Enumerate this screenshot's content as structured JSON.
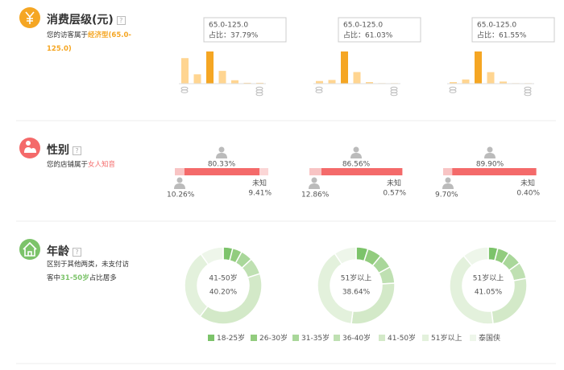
{
  "spending": {
    "title": "消费层级(元)",
    "desc_prefix": "您的访客属于",
    "desc_highlight": "经济型(65.0-125.0)",
    "charts": [
      {
        "type": "bar",
        "tooltip_title": "65.0-125.0",
        "tooltip_label": "占比：37.79%",
        "values": [
          30,
          11,
          37.79,
          15,
          4,
          1,
          1
        ],
        "colors": [
          "#ffd591",
          "#ffd591",
          "#f5a623",
          "#ffd591",
          "#ffd591",
          "#ffd591",
          "#ffd591"
        ]
      },
      {
        "type": "bar",
        "tooltip_title": "65.0-125.0",
        "tooltip_label": "占比：61.03%",
        "values": [
          5,
          7,
          61.03,
          22,
          3,
          1,
          1
        ],
        "colors": [
          "#ffd591",
          "#ffd591",
          "#f5a623",
          "#ffd591",
          "#ffd591",
          "#ffd591",
          "#ffd591"
        ]
      },
      {
        "type": "bar",
        "tooltip_title": "65.0-125.0",
        "tooltip_label": "占比：61.55%",
        "values": [
          3,
          8,
          61.55,
          22,
          4,
          1,
          1
        ],
        "colors": [
          "#ffd591",
          "#ffd591",
          "#f5a623",
          "#ffd591",
          "#ffd591",
          "#ffd591",
          "#ffd591"
        ]
      }
    ]
  },
  "gender": {
    "title": "性别",
    "desc_prefix": "您的店铺属于",
    "desc_highlight": "女人知音",
    "unknown_name": "未知",
    "charts": [
      {
        "type": "stacked-bar",
        "values": [
          10.26,
          80.33,
          9.41
        ],
        "value_labels": [
          "10.26%",
          "80.33%",
          "9.41%"
        ],
        "colors": [
          "#f8c4c4",
          "#f46a6a",
          "#fbd6d6"
        ]
      },
      {
        "type": "stacked-bar",
        "values": [
          12.86,
          86.56,
          0.57
        ],
        "value_labels": [
          "12.86%",
          "86.56%",
          "0.57%"
        ],
        "colors": [
          "#f8c4c4",
          "#f46a6a",
          "#fbd6d6"
        ]
      },
      {
        "type": "stacked-bar",
        "values": [
          9.7,
          89.9,
          0.4
        ],
        "value_labels": [
          "9.70%",
          "89.90%",
          "0.40%"
        ],
        "colors": [
          "#f8c4c4",
          "#f46a6a",
          "#fbd6d6"
        ]
      }
    ]
  },
  "age": {
    "title": "年龄",
    "desc_prefix": "区别于其他两类，未支付访客中",
    "desc_highlight": "31-50岁",
    "desc_suffix": "占比居多",
    "legend": [
      "18-25岁",
      "26-30岁",
      "31-35岁",
      "36-40岁",
      "41-50岁",
      "51岁以上",
      "泰国侠"
    ],
    "colors": [
      "#7cc36a",
      "#92cc7e",
      "#a9d79a",
      "#bfe0b2",
      "#d3e9c8",
      "#e3f1dc",
      "#eef6ea"
    ],
    "charts": [
      {
        "type": "donut",
        "center_name": "41-50岁",
        "center_label": "40.20%",
        "values": [
          4,
          4,
          5,
          7,
          40.2,
          30,
          9.8
        ]
      },
      {
        "type": "donut",
        "center_name": "51岁以上",
        "center_label": "38.64%",
        "values": [
          5,
          6,
          6,
          7,
          28,
          38.64,
          9.36
        ]
      },
      {
        "type": "donut",
        "center_name": "51岁以上",
        "center_label": "41.05%",
        "values": [
          4,
          5,
          6,
          7,
          26,
          41.05,
          10.95
        ]
      }
    ]
  }
}
